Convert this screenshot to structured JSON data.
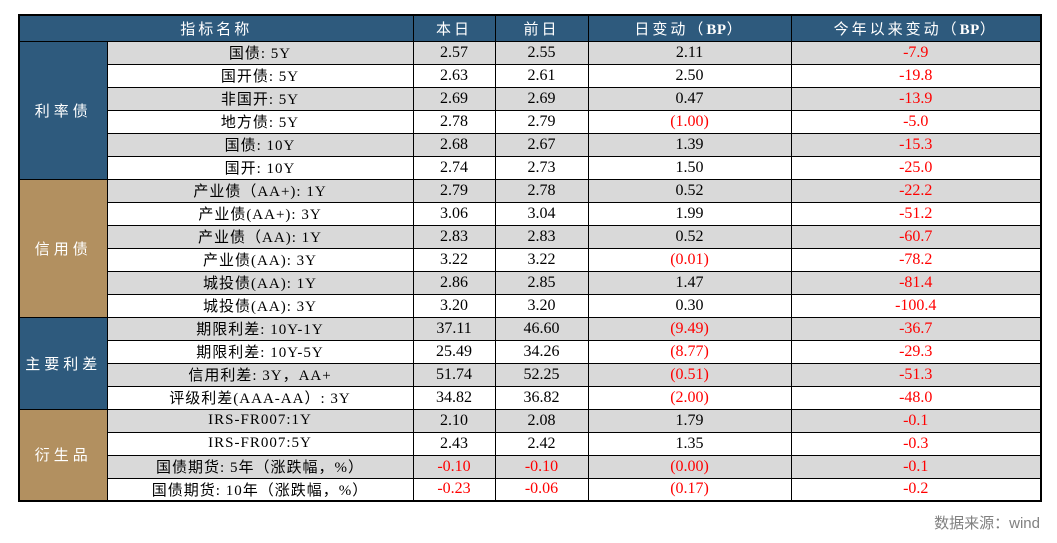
{
  "chart_data": {
    "type": "table",
    "columns": [
      "指标名称",
      "本日",
      "前日",
      "日变动（BP）",
      "今年以来变动（BP）"
    ],
    "sections": [
      {
        "category": "利率债",
        "theme": "blue",
        "rows": [
          [
            "国债: 5Y",
            "2.57",
            "2.55",
            "2.11",
            "-7.9"
          ],
          [
            "国开债: 5Y",
            "2.63",
            "2.61",
            "2.50",
            "-19.8"
          ],
          [
            "非国开: 5Y",
            "2.69",
            "2.69",
            "0.47",
            "-13.9"
          ],
          [
            "地方债: 5Y",
            "2.78",
            "2.79",
            "(1.00)",
            "-5.0"
          ],
          [
            "国债: 10Y",
            "2.68",
            "2.67",
            "1.39",
            "-15.3"
          ],
          [
            "国开: 10Y",
            "2.74",
            "2.73",
            "1.50",
            "-25.0"
          ]
        ]
      },
      {
        "category": "信用债",
        "theme": "tan",
        "rows": [
          [
            "产业债（AA+): 1Y",
            "2.79",
            "2.78",
            "0.52",
            "-22.2"
          ],
          [
            "产业债(AA+): 3Y",
            "3.06",
            "3.04",
            "1.99",
            "-51.2"
          ],
          [
            "产业债（AA): 1Y",
            "2.83",
            "2.83",
            "0.52",
            "-60.7"
          ],
          [
            "产业债(AA): 3Y",
            "3.22",
            "3.22",
            "(0.01)",
            "-78.2"
          ],
          [
            "城投债(AA): 1Y",
            "2.86",
            "2.85",
            "1.47",
            "-81.4"
          ],
          [
            "城投债(AA): 3Y",
            "3.20",
            "3.20",
            "0.30",
            "-100.4"
          ]
        ]
      },
      {
        "category": "主要利差",
        "theme": "blue",
        "rows": [
          [
            "期限利差: 10Y-1Y",
            "37.11",
            "46.60",
            "(9.49)",
            "-36.7"
          ],
          [
            "期限利差: 10Y-5Y",
            "25.49",
            "34.26",
            "(8.77)",
            "-29.3"
          ],
          [
            "信用利差: 3Y，AA+",
            "51.74",
            "52.25",
            "(0.51)",
            "-51.3"
          ],
          [
            "评级利差(AAA-AA）: 3Y",
            "34.82",
            "36.82",
            "(2.00)",
            "-48.0"
          ]
        ]
      },
      {
        "category": "衍生品",
        "theme": "tan",
        "rows": [
          [
            "IRS-FR007:1Y",
            "2.10",
            "2.08",
            "1.79",
            "-0.1"
          ],
          [
            "IRS-FR007:5Y",
            "2.43",
            "2.42",
            "1.35",
            "-0.3"
          ],
          [
            "国债期货: 5年（涨跌幅，%）",
            "-0.10",
            "-0.10",
            "(0.00)",
            "-0.1"
          ],
          [
            "国债期货: 10年（涨跌幅，%）",
            "-0.23",
            "-0.06",
            "(0.17)",
            "-0.2"
          ]
        ]
      }
    ],
    "source_note": "数据来源：wind"
  },
  "colors": {
    "header_bg": "#2E5A7D",
    "category_blue": "#2E5A7D",
    "category_tan": "#B29060",
    "row_stripe": "#D9D9D9",
    "negative_red": "#FF0000",
    "text": "#000000",
    "source_text": "#808080"
  }
}
